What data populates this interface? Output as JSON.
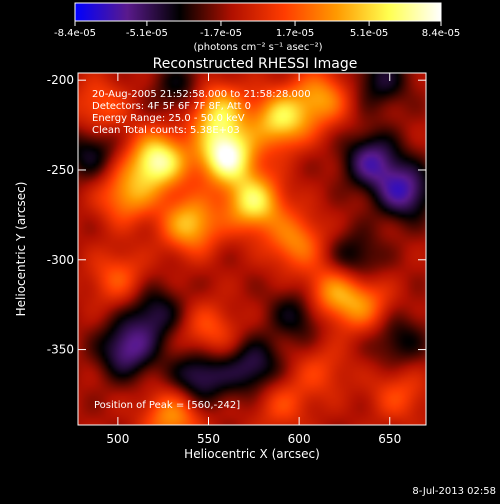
{
  "chart_data": {
    "type": "heatmap",
    "title": "Reconstructed RHESSI Image",
    "xlabel": "Heliocentric X (arcsec)",
    "ylabel": "Heliocentric Y (arcsec)",
    "xlim": [
      478,
      670
    ],
    "ylim": [
      -392,
      -196
    ],
    "xticks": [
      500,
      550,
      600,
      650
    ],
    "xtick_labels": [
      "500",
      "550",
      "600",
      "650"
    ],
    "yticks": [
      -200,
      -250,
      -300,
      -350
    ],
    "ytick_labels": [
      "-200",
      "-250",
      "-300",
      "-350"
    ],
    "colorbar": {
      "range": [
        -8.4e-05,
        8.4e-05
      ],
      "ticks": [
        -8.4e-05,
        -5.1e-05,
        -1.7e-05,
        1.7e-05,
        5.1e-05,
        8.4e-05
      ],
      "tick_labels": [
        "-8.4e-05",
        "-5.1e-05",
        "-1.7e-05",
        "1.7e-05",
        "5.1e-05",
        "8.4e-05"
      ],
      "units_label": "(photons cm⁻² s⁻¹ asec⁻²)"
    },
    "info_lines": [
      "20-Aug-2005 21:52:58.000 to 21:58:28.000",
      "Detectors: 4F 5F 6F 7F 8F, Att 0",
      "Energy Range: 25.0 - 50.0 keV",
      "Clean     Total counts: 5.38E+03"
    ],
    "peak_label": "Position of Peak = [560,-242]",
    "peak_position": [
      560,
      -242
    ],
    "colormap": [
      "#0000ff",
      "#5a1a8c",
      "#000000",
      "#b01000",
      "#ff3c00",
      "#ff9900",
      "#ffff50",
      "#ffffff"
    ],
    "sources": [
      {
        "x": 522,
        "y": -245,
        "amp": 1.0
      },
      {
        "x": 505,
        "y": -264,
        "amp": 0.55
      },
      {
        "x": 555,
        "y": -218,
        "amp": 0.75
      },
      {
        "x": 540,
        "y": -280,
        "amp": 0.7
      },
      {
        "x": 560,
        "y": -242,
        "amp": 1.1
      },
      {
        "x": 575,
        "y": -268,
        "amp": 0.85
      },
      {
        "x": 590,
        "y": -222,
        "amp": 0.8
      },
      {
        "x": 612,
        "y": -210,
        "amp": 0.55
      },
      {
        "x": 598,
        "y": -290,
        "amp": 0.5
      },
      {
        "x": 618,
        "y": -318,
        "amp": 0.55
      },
      {
        "x": 635,
        "y": -325,
        "amp": 0.45
      },
      {
        "x": 500,
        "y": -310,
        "amp": 0.35
      },
      {
        "x": 490,
        "y": -215,
        "amp": 0.35
      },
      {
        "x": 550,
        "y": -340,
        "amp": 0.35
      },
      {
        "x": 530,
        "y": -388,
        "amp": 0.55
      },
      {
        "x": 590,
        "y": -380,
        "amp": 0.3
      },
      {
        "x": 612,
        "y": -362,
        "amp": 0.25
      },
      {
        "x": 655,
        "y": -375,
        "amp": 0.3
      },
      {
        "x": 640,
        "y": -245,
        "amp": -0.55
      },
      {
        "x": 658,
        "y": -262,
        "amp": -0.6
      },
      {
        "x": 645,
        "y": -200,
        "amp": -0.35
      },
      {
        "x": 505,
        "y": -350,
        "amp": -0.55
      },
      {
        "x": 545,
        "y": -365,
        "amp": -0.5
      },
      {
        "x": 575,
        "y": -360,
        "amp": -0.45
      },
      {
        "x": 520,
        "y": -330,
        "amp": -0.4
      },
      {
        "x": 600,
        "y": -330,
        "amp": -0.35
      },
      {
        "x": 630,
        "y": -300,
        "amp": -0.35
      },
      {
        "x": 655,
        "y": -345,
        "amp": -0.3
      },
      {
        "x": 485,
        "y": -240,
        "amp": -0.35
      },
      {
        "x": 535,
        "y": -205,
        "amp": -0.3
      }
    ]
  },
  "footer": {
    "timestamp": "8-Jul-2013 02:58"
  }
}
